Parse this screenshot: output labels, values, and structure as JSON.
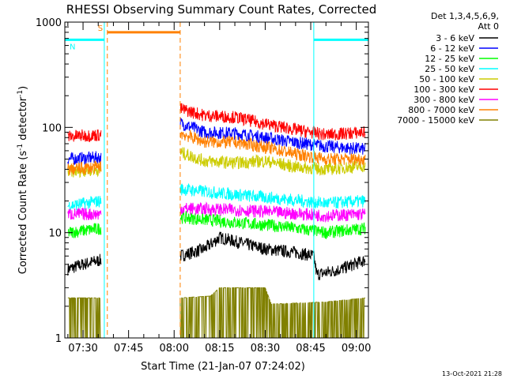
{
  "chart_data": {
    "type": "line",
    "title": "RHESSI Observing Summary Count Rates, Corrected",
    "xlabel": "Start Time (21-Jan-07 07:24:02)",
    "ylabel_main": "Corrected Count Rate (s",
    "ylabel_sup1": "-1",
    "ylabel_mid": " detector",
    "ylabel_sup2": "-1",
    "ylabel_end": ")",
    "y_scale": "log",
    "ylim": [
      1,
      1000
    ],
    "y_ticks": [
      {
        "value": 1,
        "label": "1"
      },
      {
        "value": 10,
        "label": "10"
      },
      {
        "value": 100,
        "label": "100"
      },
      {
        "value": 1000,
        "label": "1000"
      }
    ],
    "xlim": [
      "07:24",
      "09:04"
    ],
    "x_ticks": [
      {
        "minute": 30,
        "label": "07:30"
      },
      {
        "minute": 45,
        "label": "07:45"
      },
      {
        "minute": 60,
        "label": "08:00"
      },
      {
        "minute": 75,
        "label": "08:15"
      },
      {
        "minute": 90,
        "label": "08:30"
      },
      {
        "minute": 105,
        "label": "08:45"
      },
      {
        "minute": 120,
        "label": "09:00"
      }
    ],
    "legend": {
      "position": "top-right",
      "header_line1": "Det 1,3,4,5,6,9,",
      "header_line2": "Att 0"
    },
    "gaps": [
      [
        "07:38",
        "08:02"
      ]
    ],
    "series": [
      {
        "name": "3 - 6 keV",
        "color": "#000000",
        "values": [
          {
            "t": "07:25",
            "v": 4.5
          },
          {
            "t": "07:30",
            "v": 5
          },
          {
            "t": "07:36",
            "v": 5.5
          },
          {
            "t": "08:02",
            "v": 6
          },
          {
            "t": "08:10",
            "v": 7
          },
          {
            "t": "08:15",
            "v": 9
          },
          {
            "t": "08:22",
            "v": 8
          },
          {
            "t": "08:30",
            "v": 7
          },
          {
            "t": "08:40",
            "v": 6.5
          },
          {
            "t": "08:46",
            "v": 6
          },
          {
            "t": "08:47",
            "v": 4
          },
          {
            "t": "08:55",
            "v": 4.5
          },
          {
            "t": "09:03",
            "v": 5.5
          }
        ]
      },
      {
        "name": "6 - 12 keV",
        "color": "#0000ff",
        "values": [
          {
            "t": "07:25",
            "v": 50
          },
          {
            "t": "07:36",
            "v": 52
          },
          {
            "t": "08:02",
            "v": 110
          },
          {
            "t": "08:10",
            "v": 90
          },
          {
            "t": "08:20",
            "v": 88
          },
          {
            "t": "08:30",
            "v": 80
          },
          {
            "t": "08:40",
            "v": 72
          },
          {
            "t": "08:50",
            "v": 66
          },
          {
            "t": "09:03",
            "v": 62
          }
        ]
      },
      {
        "name": "12 - 25 keV",
        "color": "#00ff00",
        "values": [
          {
            "t": "07:25",
            "v": 10
          },
          {
            "t": "07:36",
            "v": 11
          },
          {
            "t": "08:02",
            "v": 14
          },
          {
            "t": "08:20",
            "v": 12.5
          },
          {
            "t": "08:35",
            "v": 11.5
          },
          {
            "t": "08:50",
            "v": 10
          },
          {
            "t": "09:03",
            "v": 11
          }
        ]
      },
      {
        "name": "25 - 50 keV",
        "color": "#00ffff",
        "values": [
          {
            "t": "07:25",
            "v": 18
          },
          {
            "t": "07:36",
            "v": 20
          },
          {
            "t": "08:02",
            "v": 26
          },
          {
            "t": "08:20",
            "v": 23
          },
          {
            "t": "08:35",
            "v": 21
          },
          {
            "t": "08:50",
            "v": 19
          },
          {
            "t": "09:03",
            "v": 20
          }
        ]
      },
      {
        "name": "50 - 100 keV",
        "color": "#cccc00",
        "values": [
          {
            "t": "07:25",
            "v": 38
          },
          {
            "t": "07:36",
            "v": 40
          },
          {
            "t": "08:02",
            "v": 58
          },
          {
            "t": "08:10",
            "v": 48
          },
          {
            "t": "08:20",
            "v": 46
          },
          {
            "t": "08:30",
            "v": 48
          },
          {
            "t": "08:40",
            "v": 42
          },
          {
            "t": "08:50",
            "v": 40
          },
          {
            "t": "09:03",
            "v": 43
          }
        ]
      },
      {
        "name": "100 - 300 keV",
        "color": "#ff0000",
        "values": [
          {
            "t": "07:25",
            "v": 82
          },
          {
            "t": "07:36",
            "v": 85
          },
          {
            "t": "08:02",
            "v": 150
          },
          {
            "t": "08:10",
            "v": 130
          },
          {
            "t": "08:20",
            "v": 125
          },
          {
            "t": "08:30",
            "v": 108
          },
          {
            "t": "08:40",
            "v": 95
          },
          {
            "t": "08:50",
            "v": 85
          },
          {
            "t": "09:03",
            "v": 90
          }
        ]
      },
      {
        "name": "300 - 800 keV",
        "color": "#ff00ff",
        "values": [
          {
            "t": "07:25",
            "v": 15
          },
          {
            "t": "07:36",
            "v": 15
          },
          {
            "t": "08:02",
            "v": 17
          },
          {
            "t": "08:20",
            "v": 16.5
          },
          {
            "t": "08:35",
            "v": 15.5
          },
          {
            "t": "08:50",
            "v": 14.5
          },
          {
            "t": "09:03",
            "v": 15
          }
        ]
      },
      {
        "name": "800 - 7000 keV",
        "color": "#ff8000",
        "values": [
          {
            "t": "07:25",
            "v": 40
          },
          {
            "t": "07:36",
            "v": 42
          },
          {
            "t": "08:02",
            "v": 88
          },
          {
            "t": "08:10",
            "v": 73
          },
          {
            "t": "08:20",
            "v": 72
          },
          {
            "t": "08:30",
            "v": 65
          },
          {
            "t": "08:40",
            "v": 56
          },
          {
            "t": "08:50",
            "v": 50
          },
          {
            "t": "09:03",
            "v": 50
          }
        ]
      },
      {
        "name": "7000 - 15000 keV",
        "color": "#808000",
        "values": [
          {
            "t": "07:25",
            "v": 2.4
          },
          {
            "t": "07:36",
            "v": 2.4
          },
          {
            "t": "08:02",
            "v": 2.4
          },
          {
            "t": "08:12",
            "v": 2.5
          },
          {
            "t": "08:15",
            "v": 3
          },
          {
            "t": "08:30",
            "v": 3
          },
          {
            "t": "08:32",
            "v": 2.1
          },
          {
            "t": "08:50",
            "v": 2.2
          },
          {
            "t": "09:03",
            "v": 2.4
          }
        ]
      }
    ],
    "flags": [
      {
        "label": "S",
        "color": "#ff8000",
        "start": "07:38",
        "end": "08:02",
        "level": 800
      },
      {
        "label": "N",
        "color": "#00ffff",
        "start": "07:24",
        "end": "07:37",
        "level": 680
      },
      {
        "label": "",
        "color": "#00ffff",
        "start": "08:46",
        "end": "09:04",
        "level": 680
      }
    ],
    "vlines": [
      {
        "t": "07:37",
        "color": "#00ffff",
        "style": "solid"
      },
      {
        "t": "07:38",
        "color": "#ff8000",
        "style": "dashed"
      },
      {
        "t": "08:02",
        "color": "#ff8000",
        "style": "dashed"
      },
      {
        "t": "08:46",
        "color": "#00ffff",
        "style": "solid"
      },
      {
        "t": "09:04",
        "color": "#00ffff",
        "style": "dashed"
      }
    ]
  },
  "footer": {
    "timestamp": "13-Oct-2021 21:28"
  }
}
